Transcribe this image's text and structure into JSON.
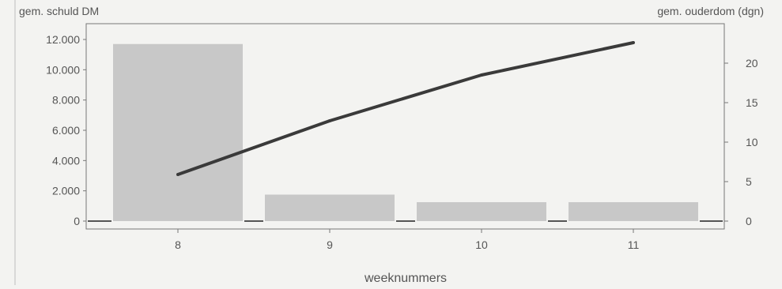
{
  "chart_data": {
    "type": "bar",
    "categories": [
      "8",
      "9",
      "10",
      "11"
    ],
    "xlabel": "weeknummers",
    "left_axis": {
      "label": "gem. schuld DM",
      "ylim": [
        0,
        13000
      ],
      "ticks": [
        0,
        2000,
        4000,
        6000,
        8000,
        10000,
        12000
      ],
      "tick_labels": [
        "0",
        "2.000",
        "4.000",
        "6.000",
        "8.000",
        "10.000",
        "12.000"
      ]
    },
    "right_axis": {
      "label": "gem. ouderdom (dgn)",
      "ylim": [
        0,
        24.5
      ],
      "ticks": [
        0,
        5,
        10,
        15,
        20
      ],
      "tick_labels": [
        "0",
        "5",
        "10",
        "15",
        "20"
      ]
    },
    "series": [
      {
        "type": "bar",
        "axis": "left",
        "values": [
          11700,
          1750,
          1250,
          1250
        ],
        "color": "#c8c8c8"
      },
      {
        "type": "line",
        "axis": "right",
        "values": [
          5.9,
          12.7,
          18.5,
          22.6
        ],
        "color": "#3a3a3a"
      }
    ],
    "grid": false,
    "legend": "none"
  }
}
